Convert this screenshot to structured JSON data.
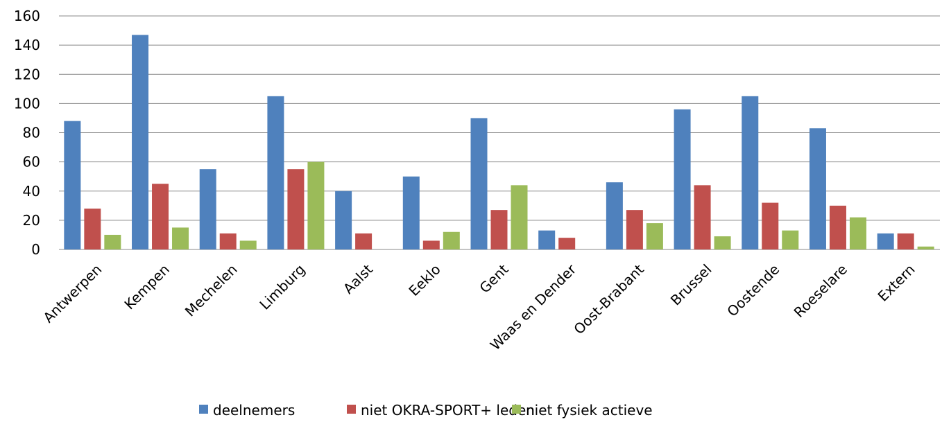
{
  "chart_data": {
    "type": "bar",
    "categories": [
      "Antwerpen",
      "Kempen",
      "Mechelen",
      "Limburg",
      "Aalst",
      "Eeklo",
      "Gent",
      "Waas en Dender",
      "Oost-Brabant",
      "Brussel",
      "Oostende",
      "Roeselare",
      "Extern"
    ],
    "series": [
      {
        "name": "deelnemers",
        "color": "#4f81bd",
        "values": [
          88,
          147,
          55,
          105,
          40,
          50,
          90,
          13,
          46,
          96,
          105,
          83,
          11
        ]
      },
      {
        "name": "niet OKRA-SPORT+ leden",
        "color": "#c0504d",
        "values": [
          28,
          45,
          11,
          55,
          11,
          6,
          27,
          8,
          27,
          44,
          32,
          30,
          11
        ]
      },
      {
        "name": "niet fysiek actieve",
        "color": "#9bbb59",
        "values": [
          10,
          15,
          6,
          60,
          0,
          12,
          44,
          0,
          18,
          9,
          13,
          22,
          2
        ]
      }
    ],
    "ylim": [
      0,
      160
    ],
    "yticks": [
      0,
      20,
      40,
      60,
      80,
      100,
      120,
      140,
      160
    ],
    "grid": true,
    "legend": "bottom"
  }
}
